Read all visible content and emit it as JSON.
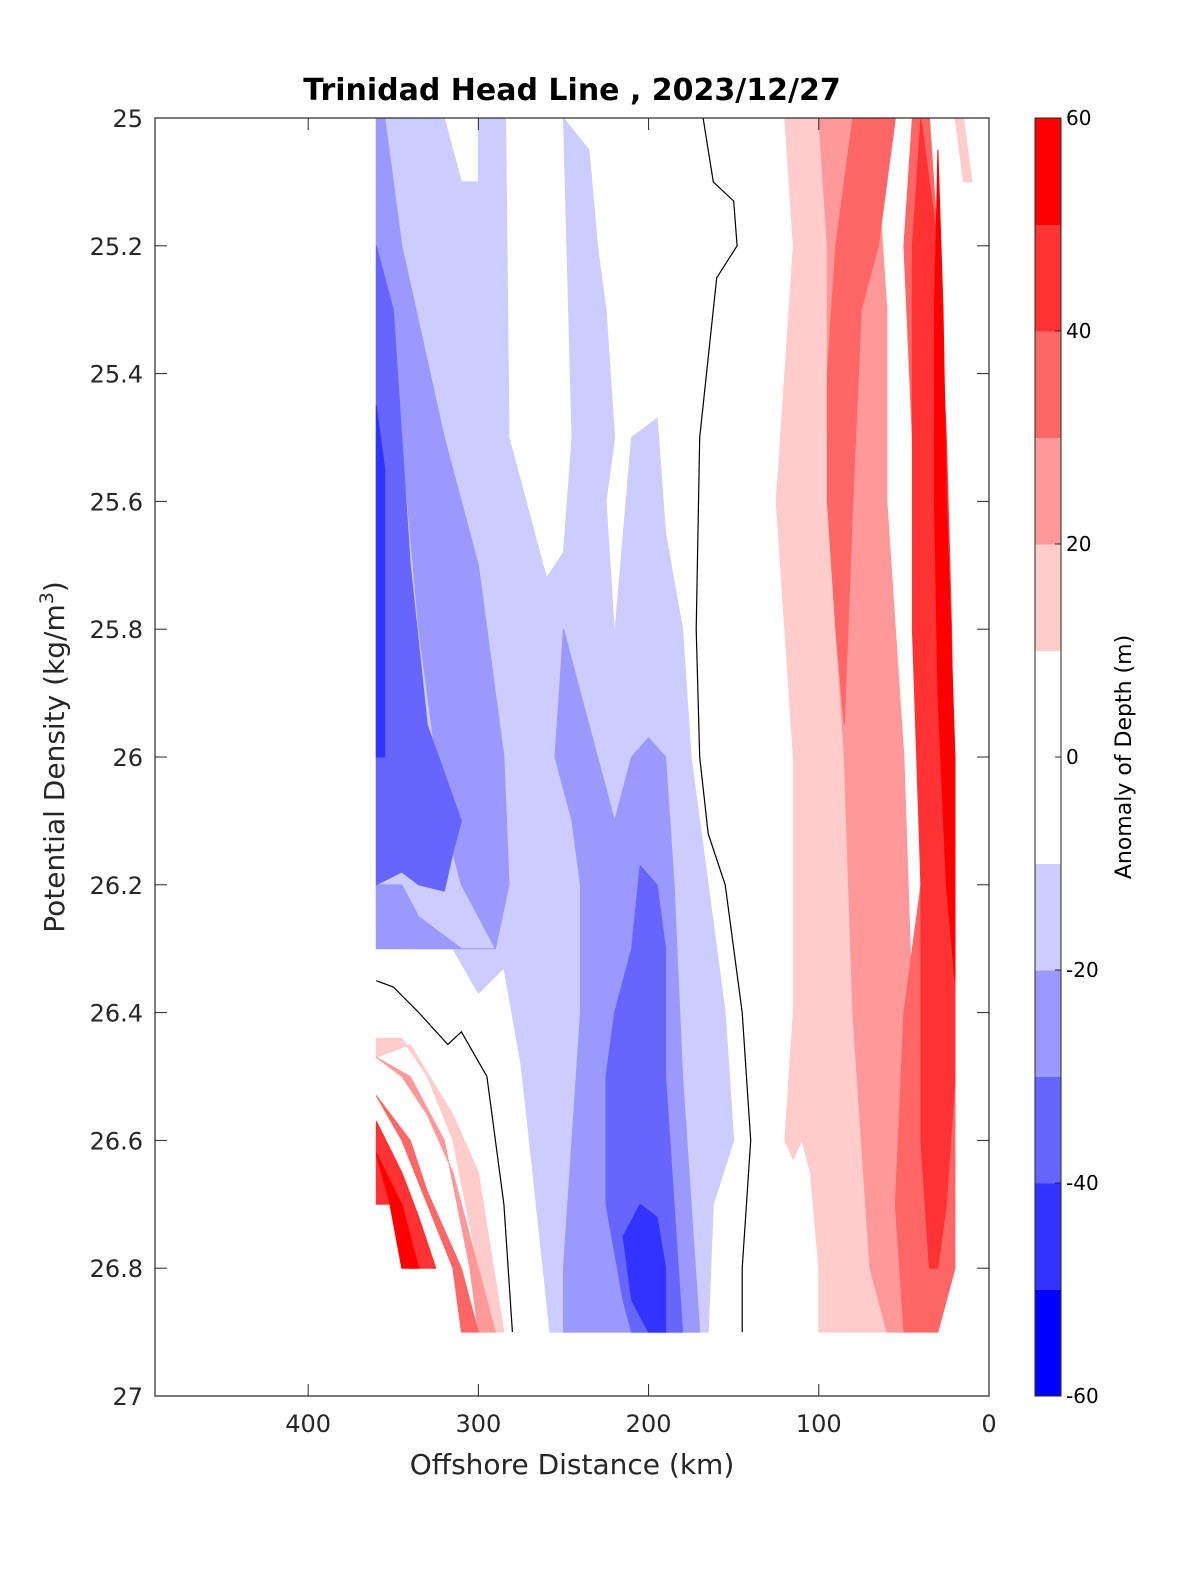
{
  "chart_data": {
    "type": "contour",
    "title": "Trinidad Head Line , 2023/12/27",
    "xlabel": "Offshore Distance (km)",
    "ylabel_main": "Potential Density (kg/m",
    "ylabel_sup": "3",
    "ylabel_end": ")",
    "xlim": [
      0,
      490
    ],
    "x_reversed": true,
    "ylim": [
      25,
      27
    ],
    "y_reversed": true,
    "xticks": [
      400,
      300,
      200,
      100,
      0
    ],
    "yticks": [
      25,
      25.2,
      25.4,
      25.6,
      25.8,
      26,
      26.2,
      26.4,
      26.6,
      26.8,
      27
    ],
    "colorbar": {
      "label": "Anomaly of Depth (m)",
      "range": [
        -60,
        60
      ],
      "tick_values": [
        -60,
        -40,
        -20,
        0,
        20,
        40,
        60
      ],
      "levels": [
        -60,
        -50,
        -40,
        -30,
        -20,
        -10,
        10,
        20,
        30,
        40,
        50,
        60
      ],
      "colors": [
        "#0000ff",
        "#3333ff",
        "#6666ff",
        "#9999ff",
        "#ccccff",
        "#ffffff",
        "#ffcccc",
        "#ff9999",
        "#ff6666",
        "#ff3333",
        "#ff0000"
      ]
    },
    "zero_contour_color": "#000000",
    "regions": [
      {
        "fill": "#ccccff",
        "points": [
          [
            360,
            25
          ],
          [
            320,
            25
          ],
          [
            310,
            25.1
          ],
          [
            300,
            25.1
          ],
          [
            300,
            25
          ],
          [
            284,
            25
          ],
          [
            282,
            25.5
          ],
          [
            260,
            25.72
          ],
          [
            250,
            25.68
          ],
          [
            245,
            25.5
          ],
          [
            250,
            25
          ],
          [
            235,
            25.05
          ],
          [
            230,
            25.2
          ],
          [
            225,
            25.3
          ],
          [
            220,
            25.5
          ],
          [
            225,
            25.6
          ],
          [
            220,
            25.81
          ],
          [
            210,
            25.5
          ],
          [
            195,
            25.47
          ],
          [
            190,
            25.65
          ],
          [
            180,
            25.8
          ],
          [
            175,
            26.0
          ],
          [
            165,
            26.2
          ],
          [
            155,
            26.4
          ],
          [
            150,
            26.6
          ],
          [
            162,
            26.7
          ],
          [
            165,
            26.9
          ],
          [
            258,
            26.9
          ],
          [
            262,
            26.8
          ],
          [
            270,
            26.6
          ],
          [
            275,
            26.48
          ],
          [
            285,
            26.33
          ],
          [
            300,
            26.37
          ],
          [
            315,
            26.3
          ],
          [
            340,
            26.3
          ],
          [
            360,
            26.27
          ]
        ]
      },
      {
        "fill": "#9999ff",
        "points": [
          [
            360,
            25
          ],
          [
            360,
            25.2
          ],
          [
            355,
            25.25
          ],
          [
            345,
            25.5
          ],
          [
            335,
            25.8
          ],
          [
            325,
            26.0
          ],
          [
            320,
            26.1
          ],
          [
            310,
            26.2
          ],
          [
            290,
            26.3
          ],
          [
            310,
            26.3
          ],
          [
            335,
            26.25
          ],
          [
            345,
            26.2
          ],
          [
            360,
            26.2
          ],
          [
            360,
            26.3
          ],
          [
            290,
            26.3
          ],
          [
            282,
            26.2
          ],
          [
            285,
            26.0
          ],
          [
            290,
            25.9
          ],
          [
            300,
            25.7
          ],
          [
            320,
            25.5
          ],
          [
            345,
            25.2
          ],
          [
            355,
            25.0
          ]
        ]
      },
      {
        "fill": "#9999ff",
        "points": [
          [
            240,
            26.2
          ],
          [
            245,
            26.1
          ],
          [
            255,
            26.0
          ],
          [
            250,
            25.8
          ],
          [
            240,
            25.9
          ],
          [
            230,
            26.0
          ],
          [
            220,
            26.1
          ],
          [
            210,
            26.0
          ],
          [
            200,
            25.97
          ],
          [
            190,
            26.0
          ],
          [
            185,
            26.2
          ],
          [
            180,
            26.5
          ],
          [
            175,
            26.7
          ],
          [
            170,
            26.9
          ],
          [
            250,
            26.9
          ],
          [
            250,
            26.8
          ],
          [
            245,
            26.6
          ],
          [
            240,
            26.4
          ]
        ]
      },
      {
        "fill": "#6666ff",
        "points": [
          [
            360,
            25.2
          ],
          [
            350,
            25.3
          ],
          [
            345,
            25.5
          ],
          [
            340,
            25.7
          ],
          [
            330,
            25.95
          ],
          [
            310,
            26.1
          ],
          [
            315,
            26.15
          ],
          [
            320,
            26.21
          ],
          [
            335,
            26.2
          ],
          [
            345,
            26.18
          ],
          [
            360,
            26.2
          ]
        ]
      },
      {
        "fill": "#6666ff",
        "points": [
          [
            220,
            26.4
          ],
          [
            225,
            26.5
          ],
          [
            225,
            26.7
          ],
          [
            215,
            26.85
          ],
          [
            210,
            26.9
          ],
          [
            180,
            26.9
          ],
          [
            185,
            26.7
          ],
          [
            190,
            26.5
          ],
          [
            190,
            26.3
          ],
          [
            195,
            26.2
          ],
          [
            205,
            26.17
          ],
          [
            210,
            26.3
          ]
        ]
      },
      {
        "fill": "#3333ff",
        "points": [
          [
            360,
            25.45
          ],
          [
            355,
            25.55
          ],
          [
            355,
            25.8
          ],
          [
            355,
            26.0
          ],
          [
            360,
            26.0
          ]
        ]
      },
      {
        "fill": "#3333ff",
        "points": [
          [
            205,
            26.7
          ],
          [
            215,
            26.75
          ],
          [
            210,
            26.85
          ],
          [
            200,
            26.9
          ],
          [
            190,
            26.9
          ],
          [
            190,
            26.8
          ],
          [
            195,
            26.72
          ]
        ]
      },
      {
        "fill": "#ffcccc",
        "points": [
          [
            120,
            25
          ],
          [
            115,
            25.2
          ],
          [
            120,
            25.4
          ],
          [
            125,
            25.6
          ],
          [
            120,
            25.8
          ],
          [
            115,
            26.0
          ],
          [
            115,
            26.4
          ],
          [
            120,
            26.6
          ],
          [
            115,
            26.63
          ],
          [
            110,
            26.6
          ],
          [
            105,
            26.65
          ],
          [
            100,
            26.8
          ],
          [
            100,
            26.9
          ],
          [
            50,
            26.9
          ],
          [
            55,
            26.8
          ],
          [
            65,
            26.4
          ],
          [
            70,
            26.2
          ],
          [
            70,
            26.0
          ],
          [
            80,
            25.6
          ],
          [
            90,
            25.4
          ],
          [
            95,
            25.2
          ],
          [
            90,
            25
          ]
        ]
      },
      {
        "fill": "#ffcccc",
        "points": [
          [
            15,
            25
          ],
          [
            10,
            25.1
          ],
          [
            15,
            25.1
          ],
          [
            20,
            25
          ]
        ]
      },
      {
        "fill": "#ffcccc",
        "points": [
          [
            360,
            26.44
          ],
          [
            360,
            26.47
          ],
          [
            340,
            26.45
          ],
          [
            315,
            26.56
          ],
          [
            300,
            26.65
          ],
          [
            285,
            26.9
          ],
          [
            290,
            26.9
          ],
          [
            300,
            26.8
          ],
          [
            315,
            26.6
          ],
          [
            330,
            26.5
          ],
          [
            345,
            26.44
          ]
        ]
      },
      {
        "fill": "#ff9999",
        "points": [
          [
            100,
            25
          ],
          [
            95,
            25.2
          ],
          [
            95,
            25.5
          ],
          [
            90,
            25.8
          ],
          [
            85,
            26.0
          ],
          [
            80,
            26.4
          ],
          [
            75,
            26.6
          ],
          [
            70,
            26.8
          ],
          [
            60,
            26.9
          ],
          [
            50,
            26.9
          ],
          [
            45,
            26.8
          ],
          [
            40,
            26.7
          ],
          [
            45,
            26.4
          ],
          [
            50,
            26.0
          ],
          [
            55,
            25.8
          ],
          [
            60,
            25.6
          ],
          [
            60,
            25.3
          ],
          [
            65,
            25.1
          ],
          [
            70,
            25
          ]
        ]
      },
      {
        "fill": "#ff9999",
        "points": [
          [
            360,
            26.47
          ],
          [
            345,
            26.5
          ],
          [
            330,
            26.56
          ],
          [
            315,
            26.65
          ],
          [
            300,
            26.8
          ],
          [
            290,
            26.9
          ],
          [
            300,
            26.9
          ],
          [
            305,
            26.8
          ],
          [
            320,
            26.6
          ],
          [
            340,
            26.5
          ]
        ]
      },
      {
        "fill": "#ff6666",
        "points": [
          [
            80,
            25
          ],
          [
            90,
            25.2
          ],
          [
            95,
            25.4
          ],
          [
            95,
            25.6
          ],
          [
            90,
            25.8
          ],
          [
            85,
            25.95
          ],
          [
            80,
            25.6
          ],
          [
            75,
            25.3
          ],
          [
            65,
            25.2
          ],
          [
            55,
            25.0
          ]
        ]
      },
      {
        "fill": "#ff6666",
        "points": [
          [
            45,
            25
          ],
          [
            50,
            25.2
          ],
          [
            45,
            25.5
          ],
          [
            40,
            25.8
          ],
          [
            40,
            26.2
          ],
          [
            50,
            26.4
          ],
          [
            55,
            26.7
          ],
          [
            50,
            26.9
          ],
          [
            30,
            26.9
          ],
          [
            20,
            26.8
          ],
          [
            20,
            26.4
          ],
          [
            25,
            26.0
          ],
          [
            25,
            25.6
          ],
          [
            30,
            25.2
          ],
          [
            35,
            25.0
          ]
        ]
      },
      {
        "fill": "#ff6666",
        "points": [
          [
            360,
            26.53
          ],
          [
            340,
            26.6
          ],
          [
            330,
            26.68
          ],
          [
            310,
            26.8
          ],
          [
            300,
            26.9
          ],
          [
            310,
            26.9
          ],
          [
            315,
            26.8
          ],
          [
            330,
            26.7
          ],
          [
            345,
            26.6
          ]
        ]
      },
      {
        "fill": "#ff3333",
        "points": [
          [
            40,
            25
          ],
          [
            35,
            25.1
          ],
          [
            30,
            25.2
          ],
          [
            25,
            25.5
          ],
          [
            22,
            25.8
          ],
          [
            20,
            26.2
          ],
          [
            20,
            26.5
          ],
          [
            25,
            26.7
          ],
          [
            30,
            26.8
          ],
          [
            35,
            26.8
          ],
          [
            40,
            26.6
          ],
          [
            40,
            26.2
          ],
          [
            45,
            25.8
          ],
          [
            45,
            25.4
          ],
          [
            45,
            25.2
          ]
        ]
      },
      {
        "fill": "#ff3333",
        "points": [
          [
            360,
            26.57
          ],
          [
            345,
            26.65
          ],
          [
            335,
            26.72
          ],
          [
            325,
            26.8
          ],
          [
            340,
            26.8
          ],
          [
            350,
            26.7
          ],
          [
            360,
            26.7
          ]
        ]
      },
      {
        "fill": "#ff0000",
        "points": [
          [
            30,
            25.05
          ],
          [
            27,
            25.3
          ],
          [
            25,
            25.6
          ],
          [
            20,
            26.0
          ],
          [
            20,
            26.35
          ],
          [
            25,
            26.2
          ],
          [
            30,
            25.9
          ],
          [
            32,
            25.6
          ],
          [
            32,
            25.3
          ]
        ]
      },
      {
        "fill": "#ff0000",
        "points": [
          [
            360,
            26.62
          ],
          [
            352,
            26.7
          ],
          [
            345,
            26.8
          ],
          [
            335,
            26.8
          ],
          [
            345,
            26.7
          ]
        ]
      }
    ],
    "zero_contours": [
      [
        [
          168,
          25
        ],
        [
          162,
          25.1
        ],
        [
          150,
          25.13
        ],
        [
          148,
          25.2
        ],
        [
          160,
          25.25
        ],
        [
          170,
          25.5
        ],
        [
          172,
          25.8
        ],
        [
          170,
          26.0
        ],
        [
          165,
          26.12
        ],
        [
          155,
          26.2
        ],
        [
          145,
          26.4
        ],
        [
          140,
          26.6
        ],
        [
          145,
          26.8
        ],
        [
          145,
          26.9
        ]
      ],
      [
        [
          360,
          26.35
        ],
        [
          350,
          26.36
        ],
        [
          335,
          26.4
        ],
        [
          318,
          26.45
        ],
        [
          310,
          26.43
        ],
        [
          295,
          26.5
        ],
        [
          285,
          26.7
        ],
        [
          280,
          26.9
        ]
      ]
    ]
  }
}
